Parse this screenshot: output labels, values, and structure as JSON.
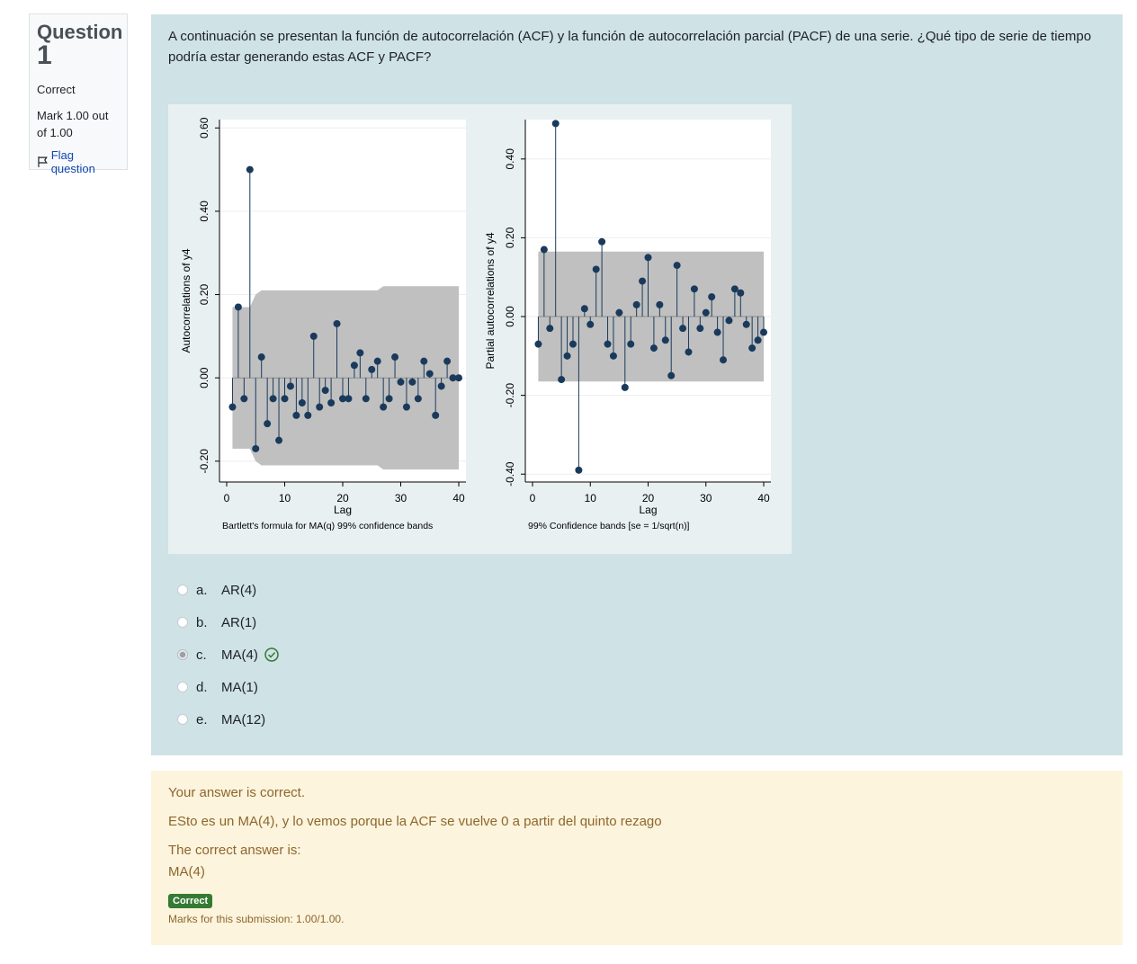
{
  "info": {
    "question_label": "Question",
    "question_number": "1",
    "state": "Correct",
    "grade": "Mark 1.00 out of 1.00",
    "flag_label": "Flag question"
  },
  "question_text": "A continuación se presentan la función de autocorrelación (ACF) y la función de autocorrelación parcial (PACF)  de una serie. ¿Qué tipo de serie de tiempo podría estar generando estas ACF y PACF?",
  "options": [
    {
      "num": "a.",
      "text": "AR(4)"
    },
    {
      "num": "b.",
      "text": "AR(1)"
    },
    {
      "num": "c.",
      "text": "MA(4)",
      "selected": true,
      "correct": true
    },
    {
      "num": "d.",
      "text": "MA(1)"
    },
    {
      "num": "e.",
      "text": "MA(12)"
    }
  ],
  "feedback": {
    "result": "Your answer is correct.",
    "general": "ESto es un MA(4), y lo vemos porque la ACF se vuelve 0 a partir del quinto rezago",
    "right_answer_label": "The correct answer is:",
    "right_answer": "MA(4)",
    "badge": "Correct",
    "marks": "Marks for this submission: 1.00/1.00."
  },
  "colors": {
    "stem": "#1a3a5c",
    "band": "#c0c0c0",
    "correct": "#357a32"
  },
  "chart_data": [
    {
      "type": "stem",
      "title": "",
      "xlabel": "Lag",
      "ylabel": "Autocorrelations of y4",
      "note": "Bartlett's formula for MA(q) 99% confidence bands",
      "xticks": [
        "0",
        "10",
        "20",
        "30",
        "40"
      ],
      "yticks": [
        "-0.20",
        "0.00",
        "0.20",
        "0.40",
        "0.60"
      ],
      "xlim": [
        0,
        40
      ],
      "ylim": [
        -0.25,
        0.62
      ],
      "x": [
        1,
        2,
        3,
        4,
        5,
        6,
        7,
        8,
        9,
        10,
        11,
        12,
        13,
        14,
        15,
        16,
        17,
        18,
        19,
        20,
        21,
        22,
        23,
        24,
        25,
        26,
        27,
        28,
        29,
        30,
        31,
        32,
        33,
        34,
        35,
        36,
        37,
        38,
        39,
        40
      ],
      "values": [
        -0.07,
        0.17,
        -0.05,
        0.5,
        -0.17,
        0.05,
        -0.11,
        -0.05,
        -0.15,
        -0.05,
        -0.02,
        -0.09,
        -0.06,
        -0.09,
        0.1,
        -0.07,
        -0.03,
        -0.06,
        0.13,
        -0.05,
        -0.05,
        0.03,
        0.06,
        -0.05,
        0.02,
        0.04,
        -0.07,
        -0.05,
        0.05,
        -0.01,
        -0.07,
        -0.01,
        -0.05,
        0.04,
        0.01,
        -0.09,
        -0.02,
        0.04,
        0.0,
        0.0
      ],
      "band": [
        0.17,
        0.17,
        0.17,
        0.17,
        0.2,
        0.21,
        0.21,
        0.21,
        0.21,
        0.21,
        0.21,
        0.21,
        0.21,
        0.21,
        0.21,
        0.21,
        0.21,
        0.21,
        0.21,
        0.21,
        0.21,
        0.21,
        0.21,
        0.21,
        0.21,
        0.21,
        0.22,
        0.22,
        0.22,
        0.22,
        0.22,
        0.22,
        0.22,
        0.22,
        0.22,
        0.22,
        0.22,
        0.22,
        0.22,
        0.22
      ]
    },
    {
      "type": "stem",
      "title": "",
      "xlabel": "Lag",
      "ylabel": "Partial autocorrelations of y4",
      "note": "99% Confidence bands [se = 1/sqrt(n)]",
      "xticks": [
        "0",
        "10",
        "20",
        "30",
        "40"
      ],
      "yticks": [
        "-0.40",
        "-0.20",
        "0.00",
        "0.20",
        "0.40"
      ],
      "xlim": [
        0,
        40
      ],
      "ylim": [
        -0.42,
        0.5
      ],
      "x": [
        1,
        2,
        3,
        4,
        5,
        6,
        7,
        8,
        9,
        10,
        11,
        12,
        13,
        14,
        15,
        16,
        17,
        18,
        19,
        20,
        21,
        22,
        23,
        24,
        25,
        26,
        27,
        28,
        29,
        30,
        31,
        32,
        33,
        34,
        35,
        36,
        37,
        38,
        39,
        40
      ],
      "values": [
        -0.07,
        0.17,
        -0.03,
        0.49,
        -0.16,
        -0.1,
        -0.07,
        -0.39,
        0.02,
        -0.02,
        0.12,
        0.19,
        -0.07,
        -0.1,
        0.01,
        -0.18,
        -0.07,
        0.03,
        0.09,
        0.15,
        -0.08,
        0.03,
        -0.06,
        -0.15,
        0.13,
        -0.03,
        -0.09,
        0.07,
        -0.03,
        0.01,
        0.05,
        -0.04,
        -0.11,
        -0.01,
        0.07,
        0.06,
        -0.02,
        -0.08,
        -0.06,
        -0.04
      ],
      "band": [
        0.165
      ]
    }
  ]
}
